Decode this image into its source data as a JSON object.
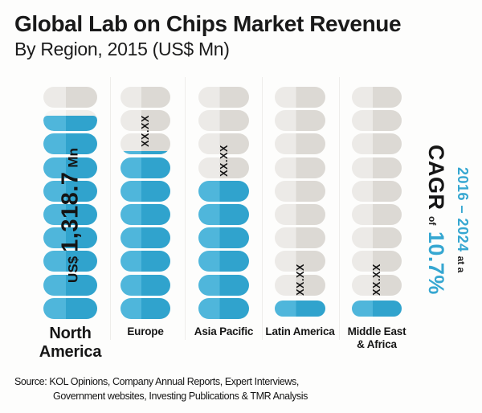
{
  "header": {
    "title": "Global Lab on Chips Market Revenue",
    "subtitle": "By Region, 2015 (US$ Mn)"
  },
  "chart_data": {
    "type": "bar",
    "subtype": "pictorial-pill-bar",
    "icon": "pill-capsule",
    "icons_per_column": 10,
    "orientation": "vertical",
    "title": "Global Lab on Chips Market Revenue",
    "subtitle": "By Region, 2015 (US$ Mn)",
    "unit": "US$ Mn",
    "grid": "off",
    "legend": "none",
    "categories": [
      "North America",
      "Europe",
      "Asia Pacific",
      "Latin America",
      "Middle East & Africa"
    ],
    "series": [
      {
        "region": "North America",
        "axis_lines": [
          "North",
          "America"
        ],
        "value_mn": 1318.7,
        "value_label": "US$ 1,318.7 Mn",
        "value_parts": {
          "prefix": "US$",
          "number": "1,318.7",
          "suffix": "Mn"
        },
        "filled_icons": 8.75,
        "pills_top_to_bottom": [
          0,
          0.75,
          1,
          1,
          1,
          1,
          1,
          1,
          1,
          1
        ]
      },
      {
        "region": "Europe",
        "axis_lines": [
          "Europe"
        ],
        "value_mn": null,
        "value_label": "XX.XX",
        "filled_icons": 7.18,
        "pills_top_to_bottom": [
          0,
          0,
          0.18,
          1,
          1,
          1,
          1,
          1,
          1,
          1
        ]
      },
      {
        "region": "Asia Pacific",
        "axis_lines": [
          "Asia Pacific"
        ],
        "value_mn": null,
        "value_label": "XX.XX",
        "filled_icons": 6,
        "pills_top_to_bottom": [
          0,
          0,
          0,
          0,
          1,
          1,
          1,
          1,
          1,
          1
        ]
      },
      {
        "region": "Latin America",
        "axis_lines": [
          "Latin America"
        ],
        "value_mn": null,
        "value_label": "XX.XX",
        "filled_icons": 1,
        "pills_top_to_bottom": [
          0,
          0,
          0,
          0,
          0,
          0,
          0,
          0,
          0,
          1
        ]
      },
      {
        "region": "Middle East & Africa",
        "axis_lines": [
          "Middle East",
          "& Africa"
        ],
        "value_mn": null,
        "value_label": "XX.XX",
        "filled_icons": 1,
        "pills_top_to_bottom": [
          0,
          0,
          0,
          0,
          0,
          0,
          0,
          0,
          0,
          1
        ]
      }
    ],
    "annotation": {
      "full_text": "2016 – 2024 at a CAGR of 10.7%",
      "period": "2016 – 2024",
      "connector": "at a",
      "metric": "CAGR",
      "of_word": "of",
      "cagr_value": "10.7%"
    },
    "colors": {
      "filled_light": "#4fb6db",
      "filled_dark": "#30a3cd",
      "empty_light": "#eceae7",
      "empty_dark": "#dcd9d4",
      "accent_text": "#36a7d1",
      "text": "#191919"
    }
  },
  "source": {
    "line1": "Source: KOL Opinions, Company Annual Reports, Expert Interviews,",
    "line2": "Government websites, Investing Publications & TMR Analysis"
  }
}
